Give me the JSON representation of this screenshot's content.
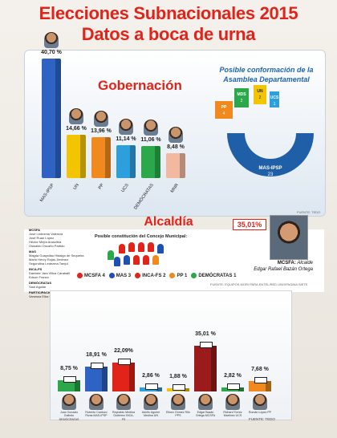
{
  "headline": {
    "line1": "Elecciones Subnacionales 2015",
    "line2": "Datos a boca de urna"
  },
  "gobernacion": {
    "title": "Gobernación",
    "asamblea_title": "Posible conformación de la Asamblea Departamental",
    "source": "FUENTE: TEDO",
    "bars": [
      {
        "label": "MAS-IPSP",
        "pct": "40,70 %",
        "value": 40.7,
        "color": "#2e63c4"
      },
      {
        "label": "UN",
        "pct": "14,66 %",
        "value": 14.66,
        "color": "#f2c500"
      },
      {
        "label": "PP",
        "pct": "13,96 %",
        "value": 13.96,
        "color": "#f08a1e"
      },
      {
        "label": "UCS",
        "pct": "11,14 %",
        "value": 11.14,
        "color": "#2d9fdd"
      },
      {
        "label": "DEMÓCRATAS",
        "pct": "11,06 %",
        "value": 11.06,
        "color": "#2aa84a"
      },
      {
        "label": "MNR",
        "pct": "8,48 %",
        "value": 8.48,
        "color": "#f2b8a0"
      }
    ],
    "seats": [
      {
        "party": "MAS-IPSP",
        "seats": "23",
        "color": "#1f5fa8"
      },
      {
        "party": "PP",
        "seats": "4",
        "color": "#f08a1e"
      },
      {
        "party": "MDS",
        "seats": "2",
        "color": "#2aa84a"
      },
      {
        "party": "UN",
        "seats": "2",
        "color": "#f2c500"
      },
      {
        "party": "UCS",
        "seats": "1",
        "color": "#2d9fdd"
      }
    ]
  },
  "alcaldia": {
    "title": "Alcaldía",
    "concejo_title": "Posible constitución del Concejo Municipal:",
    "winner_pct": "35,01%",
    "candidate_party": "MCSFA:",
    "candidate_role": "Alcalde",
    "candidate_name": "Edgar Rafael Bazán Ortega",
    "source": "FUENTE: EQUIPOS MORI PARA ENTEL/RED UNO/PAGINA SIETE",
    "lists": [
      {
        "party": "MCSFA",
        "names": [
          "José Ledezma Valencia",
          "José Ruan López",
          "Héctor Mejía Arancibia",
          "Oswaldo Oncaño Partido"
        ]
      },
      {
        "party": "MAS",
        "names": [
          "Magda Guaysilao Hidalgo de Sequeira",
          "Mario Henry Rojas Jiménez",
          "Segundina Ledezma Tarqui"
        ]
      },
      {
        "party": "INCA-FS",
        "names": [
          "Damiste Jara Villca Caraballi",
          "Edson Franco"
        ]
      },
      {
        "party": "DEMÓCRATAS",
        "names": [
          "Saúl Aguilar"
        ]
      },
      {
        "party": "PARTICIPACIÓN POPULAR",
        "names": [
          "Vanessa Elba Gutierrez Pena"
        ]
      }
    ],
    "legend": [
      {
        "label": "MCSFA 4",
        "color": "#e2231a"
      },
      {
        "label": "MAS 3",
        "color": "#1f4fb0"
      },
      {
        "label": "INCA-FS 2",
        "color": "#e2231a"
      },
      {
        "label": "PP 1",
        "color": "#f08a1e"
      },
      {
        "label": "DEMÓCRATAS 1",
        "color": "#2aa84a"
      }
    ],
    "bars": [
      {
        "pct": "8,75 %",
        "value": 8.75,
        "color": "#2aa84a",
        "name": "Juan Gonzalo Galindo DEMÓCRATAS"
      },
      {
        "pct": "18,91 %",
        "value": 18.91,
        "color": "#2e63c4",
        "name": "Roberto Cardozo Rivas MAS-IPSP"
      },
      {
        "pct": "22,09%",
        "value": 22.09,
        "color": "#e2231a",
        "name": "Reynaldo Medina Gutiérrez INCA-FS"
      },
      {
        "pct": "2,86 %",
        "value": 2.86,
        "color": "#2d9fdd",
        "name": "Adolfo Aguirre Medina UN"
      },
      {
        "pct": "1,88 %",
        "value": 1.88,
        "color": "#f2c500",
        "name": "Eliseo Gómez Rifo PPS"
      },
      {
        "pct": "35,01 %",
        "value": 35.01,
        "color": "#9b1b1b",
        "name": "Edgar Bazán Ortega MCSFA"
      },
      {
        "pct": "2,82 %",
        "value": 2.82,
        "color": "#2aa84a",
        "name": "Richard Torrez Martínez UCS"
      },
      {
        "pct": "7,68 %",
        "value": 7.68,
        "color": "#f08a1e",
        "name": "Román López PP"
      }
    ],
    "bottom_source": "FUENTE: TEDO"
  }
}
